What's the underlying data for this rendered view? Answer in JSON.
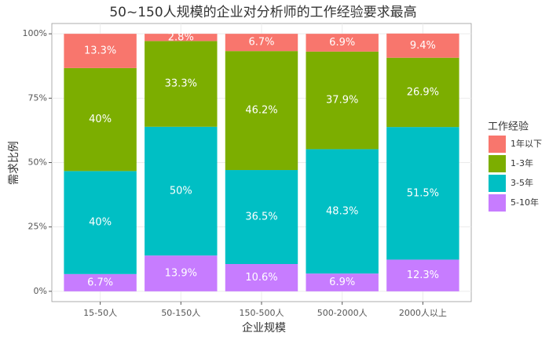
{
  "chart_data": {
    "type": "stacked_bar",
    "title": "50~150人规模的企业对分析师的工作经验要求最高",
    "x_label": "企业规模",
    "y_label": "需求比例",
    "legend_title": "工作经验",
    "legend_position": "right",
    "grid": true,
    "categories": [
      "15-50人",
      "50-150人",
      "150-500人",
      "500-2000人",
      "2000人以上"
    ],
    "series": [
      {
        "name": "1年以下",
        "color": "#F8766D",
        "values": [
          13.3,
          2.8,
          6.7,
          6.9,
          9.4
        ],
        "value_labels": [
          "13.3%",
          "2.8%",
          "6.7%",
          "6.9%",
          "9.4%"
        ]
      },
      {
        "name": "1-3年",
        "color": "#7CAE00",
        "values": [
          40,
          33.3,
          46.2,
          37.9,
          26.9
        ],
        "value_labels": [
          "40%",
          "33.3%",
          "46.2%",
          "37.9%",
          "26.9%"
        ]
      },
      {
        "name": "3-5年",
        "color": "#00BFC4",
        "values": [
          40,
          50,
          36.5,
          48.3,
          51.5
        ],
        "value_labels": [
          "40%",
          "50%",
          "36.5%",
          "48.3%",
          "51.5%"
        ]
      },
      {
        "name": "5-10年",
        "color": "#C77CFF",
        "values": [
          6.7,
          13.9,
          10.6,
          6.9,
          12.3
        ],
        "value_labels": [
          "6.7%",
          "13.9%",
          "10.6%",
          "6.9%",
          "12.3%"
        ]
      }
    ],
    "ylim": [
      -4,
      104
    ],
    "yticks": [
      {
        "value": 0,
        "label": "0%"
      },
      {
        "value": 25,
        "label": "25%"
      },
      {
        "value": 50,
        "label": "50%"
      },
      {
        "value": 75,
        "label": "75%"
      },
      {
        "value": 100,
        "label": "100%"
      }
    ]
  }
}
